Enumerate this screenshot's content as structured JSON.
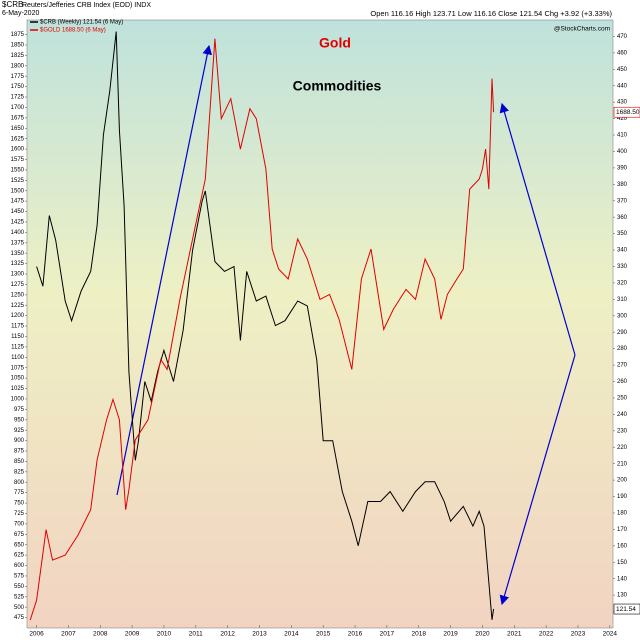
{
  "header": {
    "symbol": "$CRB",
    "description": "Reuters/Jefferies CRB Index (EOD) INDX",
    "date": "6-May-2020",
    "quote": "Open 116.16  High 123.71  Low 116.16  Close 121.54  Chg +3.92 (+3.33%)",
    "credit": "@StockCharts.com"
  },
  "chart_data": {
    "type": "line",
    "annotations": [
      "Gold",
      "Commodities"
    ],
    "xlim": [
      2005.7,
      2024.1
    ],
    "xticks": [
      2006,
      2007,
      2008,
      2009,
      2010,
      2011,
      2012,
      2013,
      2014,
      2015,
      2016,
      2017,
      2018,
      2019,
      2020,
      2021,
      2022,
      2023,
      2024
    ],
    "ylim": [
      450,
      1910
    ],
    "yticks": [
      475,
      500,
      525,
      550,
      575,
      600,
      625,
      650,
      675,
      700,
      725,
      750,
      775,
      800,
      825,
      850,
      875,
      900,
      925,
      950,
      975,
      1000,
      1025,
      1050,
      1075,
      1100,
      1125,
      1150,
      1175,
      1200,
      1225,
      1250,
      1275,
      1300,
      1325,
      1350,
      1375,
      1400,
      1425,
      1450,
      1475,
      1500,
      1525,
      1550,
      1575,
      1600,
      1625,
      1650,
      1675,
      1700,
      1725,
      1750,
      1775,
      1800,
      1825,
      1850,
      1875
    ],
    "y2lim": [
      110,
      480
    ],
    "y2ticks": [
      120,
      130,
      140,
      150,
      160,
      170,
      180,
      190,
      200,
      210,
      220,
      230,
      240,
      250,
      260,
      270,
      280,
      290,
      300,
      310,
      320,
      330,
      340,
      350,
      360,
      370,
      380,
      390,
      400,
      410,
      420,
      430,
      440,
      450,
      460,
      470
    ],
    "grid": false,
    "series": [
      {
        "name": "$CRB (Weekly) 121.54 (6 May)",
        "color": "#000000",
        "axis": "y2",
        "x": [
          2006.0,
          2006.2,
          2006.4,
          2006.6,
          2006.9,
          2007.1,
          2007.4,
          2007.7,
          2007.9,
          2008.1,
          2008.3,
          2008.5,
          2008.6,
          2008.75,
          2008.9,
          2009.1,
          2009.2,
          2009.4,
          2009.6,
          2009.8,
          2010.0,
          2010.3,
          2010.6,
          2010.9,
          2011.2,
          2011.3,
          2011.6,
          2011.9,
          2012.2,
          2012.4,
          2012.6,
          2012.9,
          2013.2,
          2013.5,
          2013.8,
          2014.2,
          2014.5,
          2014.8,
          2015.0,
          2015.3,
          2015.6,
          2015.9,
          2016.1,
          2016.4,
          2016.8,
          2017.1,
          2017.5,
          2017.9,
          2018.2,
          2018.5,
          2018.8,
          2019.0,
          2019.4,
          2019.7,
          2019.9,
          2020.05,
          2020.2,
          2020.3,
          2020.35
        ],
        "values": [
          330,
          318,
          361,
          346,
          309,
          297,
          315,
          327,
          355,
          410,
          437,
          473,
          413,
          367,
          266,
          212,
          224,
          260,
          248,
          266,
          279,
          260,
          291,
          340,
          370,
          376,
          333,
          327,
          330,
          285,
          327,
          309,
          312,
          294,
          297,
          309,
          306,
          273,
          224,
          224,
          193,
          175,
          160,
          187,
          187,
          193,
          181,
          193,
          199,
          199,
          187,
          175,
          184,
          172,
          181,
          172,
          138,
          115,
          121.54
        ],
        "last": 121.54
      },
      {
        "name": "$GOLD 1688.50 (6 May)",
        "color": "#e00000",
        "x": [
          2005.8,
          2006.0,
          2006.3,
          2006.5,
          2006.9,
          2007.3,
          2007.7,
          2007.9,
          2008.2,
          2008.4,
          2008.6,
          2008.8,
          2008.9,
          2009.1,
          2009.5,
          2009.9,
          2010.1,
          2010.5,
          2010.9,
          2011.3,
          2011.6,
          2011.8,
          2012.1,
          2012.4,
          2012.7,
          2012.9,
          2013.2,
          2013.4,
          2013.6,
          2013.9,
          2014.2,
          2014.5,
          2014.9,
          2015.2,
          2015.5,
          2015.9,
          2016.2,
          2016.5,
          2016.9,
          2017.2,
          2017.6,
          2017.9,
          2018.2,
          2018.5,
          2018.7,
          2018.9,
          2019.2,
          2019.4,
          2019.6,
          2019.9,
          2020.0,
          2020.1,
          2020.2,
          2020.3,
          2020.35
        ],
        "values": [
          469,
          517,
          686,
          613,
          625,
          673,
          734,
          854,
          950,
          999,
          950,
          734,
          782,
          902,
          950,
          1095,
          1071,
          1239,
          1384,
          1528,
          1865,
          1673,
          1721,
          1600,
          1697,
          1673,
          1552,
          1360,
          1312,
          1288,
          1384,
          1336,
          1239,
          1251,
          1191,
          1071,
          1288,
          1360,
          1167,
          1215,
          1263,
          1239,
          1336,
          1288,
          1191,
          1251,
          1288,
          1312,
          1504,
          1528,
          1552,
          1600,
          1504,
          1769,
          1688.5
        ],
        "last": {
          "value": 1688.5,
          "label": "1688.50"
        }
      }
    ]
  }
}
